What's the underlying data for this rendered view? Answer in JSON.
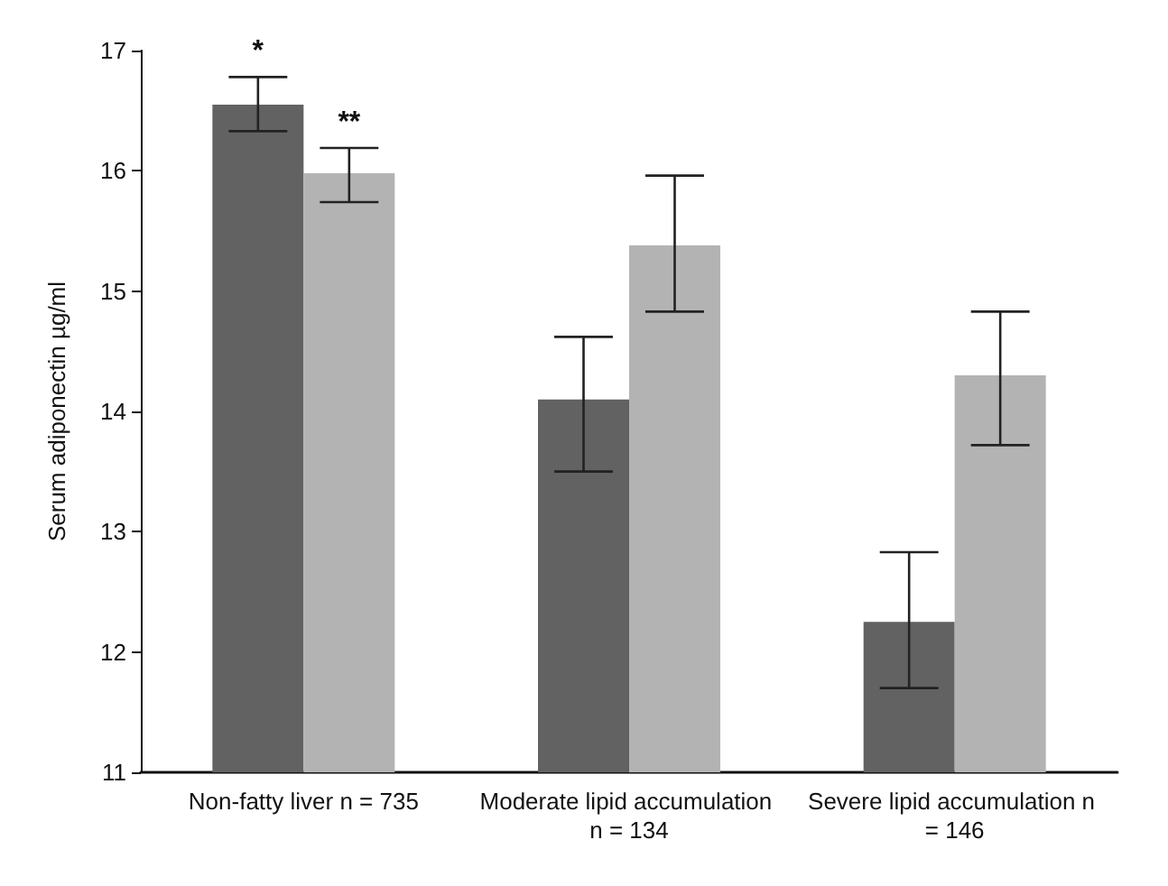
{
  "chart_data": {
    "type": "bar",
    "ylabel": "Serum adiponectin µg/ml",
    "categories": [
      "Non-fatty liver n = 735",
      "Moderate lipid accumulation n = 134",
      "Severe lipid accumulation n = 146"
    ],
    "series": [
      {
        "color": "#626262",
        "values": [
          16.55,
          14.1,
          12.25
        ],
        "errors": [
          [
            16.33,
            16.78
          ],
          [
            13.5,
            14.62
          ],
          [
            11.7,
            12.83
          ]
        ]
      },
      {
        "color": "#b3b3b3",
        "values": [
          15.98,
          15.38,
          14.3
        ],
        "errors": [
          [
            15.74,
            16.19
          ],
          [
            14.83,
            15.96
          ],
          [
            13.72,
            14.83
          ]
        ]
      }
    ],
    "ylim": [
      11,
      17
    ],
    "yticks": [
      11,
      12,
      13,
      14,
      15,
      16,
      17
    ],
    "grid": false,
    "annotations": [
      "*",
      "**"
    ]
  }
}
